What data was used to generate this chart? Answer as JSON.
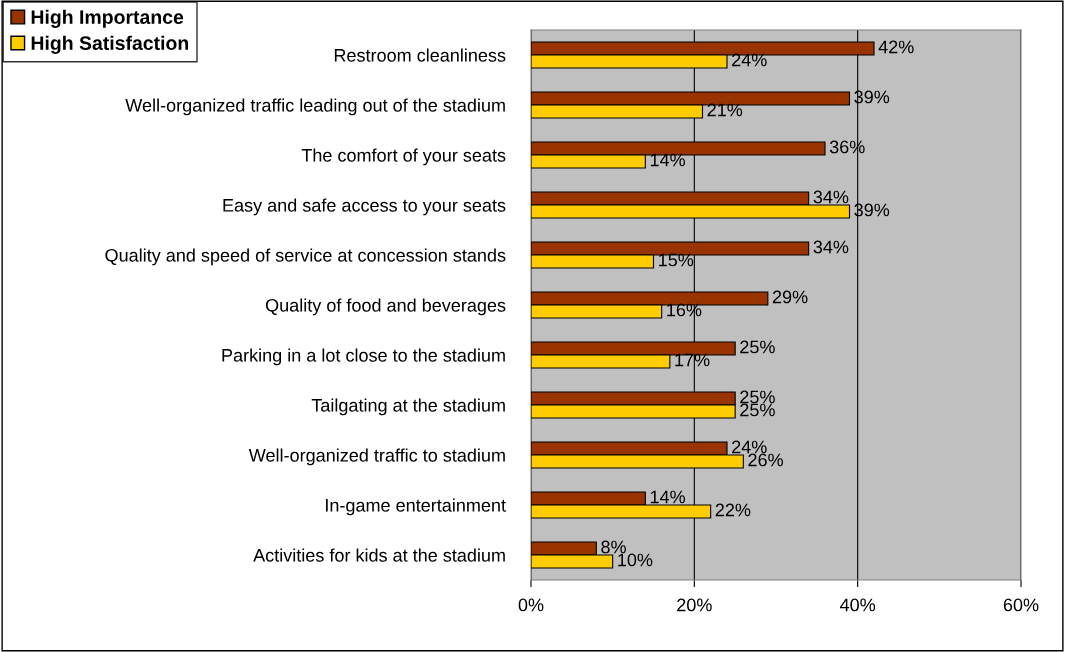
{
  "chart_data": {
    "type": "bar",
    "orientation": "horizontal",
    "categories": [
      "Restroom cleanliness",
      "Well-organized traffic leading out of the stadium",
      "The comfort of your seats",
      "Easy and safe access to your seats",
      "Quality and speed of service at concession stands",
      "Quality of food and beverages",
      "Parking in a lot close to the stadium",
      "Tailgating at the stadium",
      "Well-organized traffic to stadium",
      "In-game entertainment",
      "Activities for kids at the stadium"
    ],
    "series": [
      {
        "name": "High Importance",
        "color": "#993300",
        "values": [
          42,
          39,
          36,
          34,
          34,
          29,
          25,
          25,
          24,
          14,
          8
        ],
        "value_labels": [
          "42%",
          "39%",
          "36%",
          "34%",
          "34%",
          "29%",
          "25%",
          "25%",
          "24%",
          "14%",
          "8%"
        ]
      },
      {
        "name": "High Satisfaction",
        "color": "#ffcc00",
        "values": [
          24,
          21,
          14,
          39,
          15,
          16,
          17,
          25,
          26,
          22,
          10
        ],
        "value_labels": [
          "24%",
          "21%",
          "14%",
          "39%",
          "15%",
          "16%",
          "17%",
          "25%",
          "26%",
          "22%",
          "10%"
        ]
      }
    ],
    "xlim": [
      0,
      60
    ],
    "xticks": [
      {
        "value": 0,
        "label": "0%"
      },
      {
        "value": 20,
        "label": "20%"
      },
      {
        "value": 40,
        "label": "40%"
      },
      {
        "value": 60,
        "label": "60%"
      }
    ],
    "grid": "x",
    "legend": "top left"
  }
}
